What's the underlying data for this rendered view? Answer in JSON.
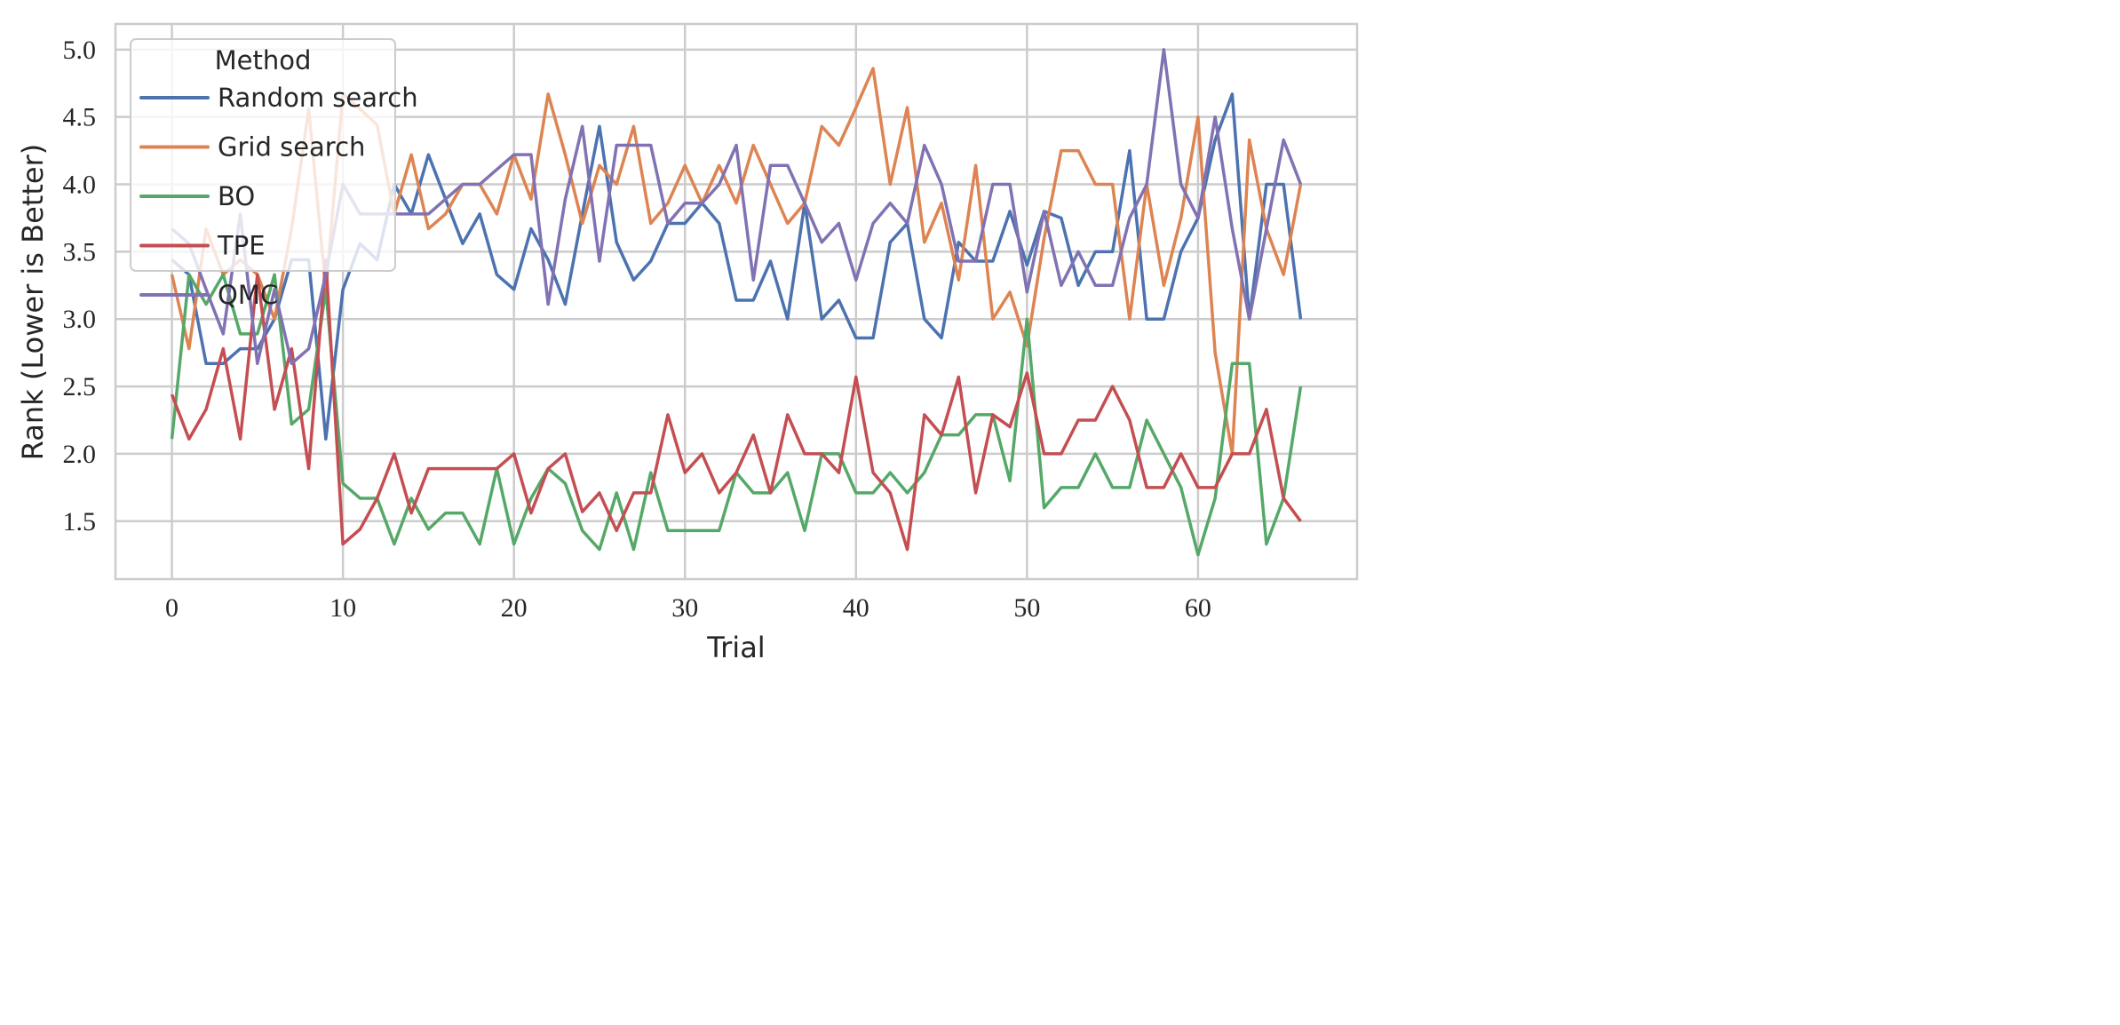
{
  "chart_data": {
    "type": "line",
    "xlabel": "Trial",
    "ylabel": "Rank (Lower is Better)",
    "xlim": [
      -3.3,
      69.3
    ],
    "ylim": [
      1.07,
      5.19
    ],
    "xticks": [
      0,
      10,
      20,
      30,
      40,
      50,
      60
    ],
    "yticks": [
      1.5,
      2.0,
      2.5,
      3.0,
      3.5,
      4.0,
      4.5,
      5.0
    ],
    "ytick_labels": [
      "1.5",
      "2.0",
      "2.5",
      "3.0",
      "3.5",
      "4.0",
      "4.5",
      "5.0"
    ],
    "grid": true,
    "legend": {
      "title": "Method",
      "placement": "top-left"
    },
    "series": [
      {
        "name": "Random search",
        "color": "#4c72b0",
        "values": [
          3.44,
          3.33,
          2.67,
          2.67,
          2.78,
          2.78,
          3.0,
          3.44,
          3.44,
          2.11,
          3.22,
          3.56,
          3.44,
          4.0,
          3.78,
          4.22,
          3.89,
          3.56,
          3.78,
          3.33,
          3.22,
          3.67,
          3.44,
          3.11,
          3.78,
          4.43,
          3.57,
          3.29,
          3.43,
          3.71,
          3.71,
          3.86,
          3.71,
          3.14,
          3.14,
          3.43,
          3.0,
          3.86,
          3.0,
          3.14,
          2.86,
          2.86,
          3.57,
          3.71,
          3.0,
          2.86,
          3.57,
          3.43,
          3.43,
          3.8,
          3.4,
          3.8,
          3.75,
          3.25,
          3.5,
          3.5,
          4.25,
          3.0,
          3.0,
          3.5,
          3.75,
          4.33,
          4.67,
          3.0,
          4.0,
          4.0,
          3.0
        ]
      },
      {
        "name": "Grid search",
        "color": "#dd8452",
        "values": [
          3.33,
          2.78,
          3.67,
          3.33,
          3.44,
          3.33,
          3.0,
          3.67,
          4.56,
          3.22,
          4.67,
          4.56,
          4.44,
          3.78,
          4.22,
          3.67,
          3.78,
          4.0,
          4.0,
          3.78,
          4.22,
          3.89,
          4.67,
          4.22,
          3.71,
          4.14,
          4.0,
          4.43,
          3.71,
          3.86,
          4.14,
          3.86,
          4.14,
          3.86,
          4.29,
          4.0,
          3.71,
          3.86,
          4.43,
          4.29,
          4.57,
          4.86,
          4.0,
          4.57,
          3.57,
          3.86,
          3.29,
          4.14,
          3.0,
          3.2,
          2.8,
          3.6,
          4.25,
          4.25,
          4.0,
          4.0,
          3.0,
          4.0,
          3.25,
          3.75,
          4.5,
          2.75,
          2.0,
          4.33,
          3.67,
          3.33,
          4.0
        ]
      },
      {
        "name": "BO",
        "color": "#55a868",
        "values": [
          2.11,
          3.33,
          3.11,
          3.33,
          2.89,
          2.89,
          3.33,
          2.22,
          2.33,
          3.22,
          1.78,
          1.67,
          1.67,
          1.33,
          1.67,
          1.44,
          1.56,
          1.56,
          1.33,
          1.89,
          1.33,
          1.67,
          1.89,
          1.78,
          1.43,
          1.29,
          1.71,
          1.29,
          1.86,
          1.43,
          1.43,
          1.43,
          1.43,
          1.86,
          1.71,
          1.71,
          1.86,
          1.43,
          2.0,
          2.0,
          1.71,
          1.71,
          1.86,
          1.71,
          1.86,
          2.14,
          2.14,
          2.29,
          2.29,
          1.8,
          3.0,
          1.6,
          1.75,
          1.75,
          2.0,
          1.75,
          1.75,
          2.25,
          2.0,
          1.75,
          1.25,
          1.67,
          2.67,
          2.67,
          1.33,
          1.67,
          2.5
        ]
      },
      {
        "name": "TPE",
        "color": "#c44e52",
        "values": [
          2.44,
          2.11,
          2.33,
          2.78,
          2.11,
          3.33,
          2.33,
          2.78,
          1.89,
          3.44,
          1.33,
          1.44,
          1.67,
          2.0,
          1.56,
          1.89,
          1.89,
          1.89,
          1.89,
          1.89,
          2.0,
          1.56,
          1.89,
          2.0,
          1.57,
          1.71,
          1.43,
          1.71,
          1.71,
          2.29,
          1.86,
          2.0,
          1.71,
          1.86,
          2.14,
          1.71,
          2.29,
          2.0,
          2.0,
          1.86,
          2.57,
          1.86,
          1.71,
          1.29,
          2.29,
          2.14,
          2.57,
          1.71,
          2.29,
          2.2,
          2.6,
          2.0,
          2.0,
          2.25,
          2.25,
          2.5,
          2.25,
          1.75,
          1.75,
          2.0,
          1.75,
          1.75,
          2.0,
          2.0,
          2.33,
          1.67,
          1.5
        ]
      },
      {
        "name": "QMC",
        "color": "#8172b3",
        "values": [
          3.67,
          3.56,
          3.22,
          2.89,
          3.78,
          2.67,
          3.22,
          2.67,
          2.78,
          3.33,
          4.0,
          3.78,
          3.78,
          3.78,
          3.78,
          3.78,
          3.89,
          4.0,
          4.0,
          4.11,
          4.22,
          4.22,
          3.11,
          3.89,
          4.43,
          3.43,
          4.29,
          4.29,
          4.29,
          3.71,
          3.86,
          3.86,
          4.0,
          4.29,
          3.29,
          4.14,
          4.14,
          3.86,
          3.57,
          3.71,
          3.29,
          3.71,
          3.86,
          3.71,
          4.29,
          4.0,
          3.43,
          3.43,
          4.0,
          4.0,
          3.2,
          3.8,
          3.25,
          3.5,
          3.25,
          3.25,
          3.75,
          4.0,
          5.0,
          4.0,
          3.75,
          4.5,
          3.67,
          3.0,
          3.67,
          4.33,
          4.0
        ]
      }
    ]
  }
}
